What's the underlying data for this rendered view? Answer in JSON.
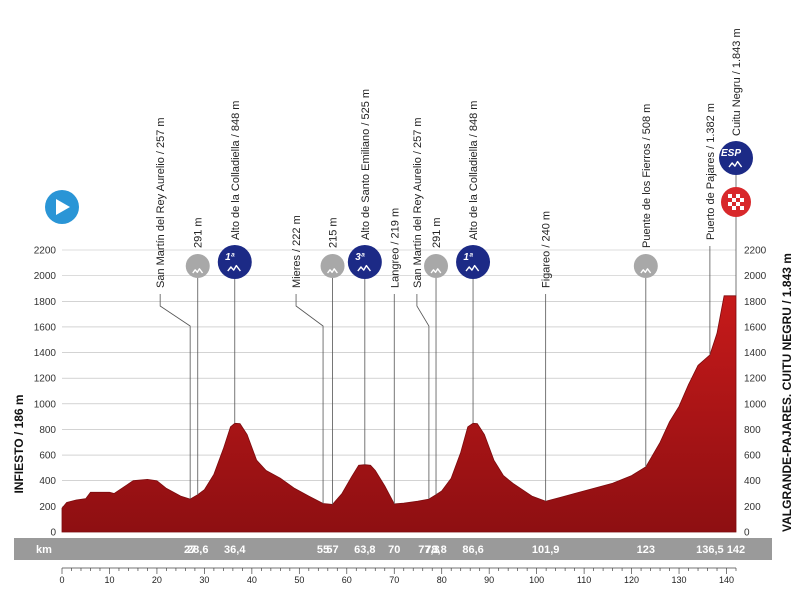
{
  "chart_data": {
    "type": "area",
    "ylim": [
      0,
      2200
    ],
    "yticks": [
      0,
      200,
      400,
      600,
      800,
      1000,
      1200,
      1400,
      1600,
      1800,
      2000,
      2200
    ],
    "xlim": [
      0,
      142
    ],
    "xticks": [
      0,
      10,
      20,
      30,
      40,
      50,
      60,
      70,
      80,
      90,
      100,
      110,
      120,
      130,
      140
    ],
    "km_label": "km",
    "start_label": "INFIESTO / 186 m",
    "finish_label": "VALGRANDE-PAJARES. CUITU NEGRU / 1.843 m",
    "profile": [
      [
        0,
        186
      ],
      [
        1,
        230
      ],
      [
        3,
        250
      ],
      [
        5,
        260
      ],
      [
        6,
        310
      ],
      [
        10,
        310
      ],
      [
        11,
        300
      ],
      [
        13,
        350
      ],
      [
        15,
        400
      ],
      [
        18,
        410
      ],
      [
        20,
        400
      ],
      [
        22,
        340
      ],
      [
        25,
        280
      ],
      [
        27,
        257
      ],
      [
        28.6,
        291
      ],
      [
        30,
        330
      ],
      [
        32,
        450
      ],
      [
        34,
        650
      ],
      [
        35.5,
        820
      ],
      [
        36.4,
        848
      ],
      [
        37.5,
        846
      ],
      [
        39,
        760
      ],
      [
        41,
        560
      ],
      [
        43,
        480
      ],
      [
        46,
        420
      ],
      [
        49,
        340
      ],
      [
        52,
        280
      ],
      [
        55,
        222
      ],
      [
        57,
        215
      ],
      [
        59,
        300
      ],
      [
        61,
        430
      ],
      [
        62.5,
        520
      ],
      [
        63.8,
        525
      ],
      [
        65,
        520
      ],
      [
        66,
        480
      ],
      [
        68,
        360
      ],
      [
        70,
        219
      ],
      [
        72,
        225
      ],
      [
        75,
        240
      ],
      [
        77.3,
        257
      ],
      [
        78.8,
        291
      ],
      [
        80,
        320
      ],
      [
        82,
        420
      ],
      [
        84,
        620
      ],
      [
        85.5,
        820
      ],
      [
        86.6,
        848
      ],
      [
        87.5,
        846
      ],
      [
        89,
        760
      ],
      [
        91,
        560
      ],
      [
        93,
        440
      ],
      [
        95,
        380
      ],
      [
        97,
        330
      ],
      [
        99,
        280
      ],
      [
        101.9,
        240
      ],
      [
        105,
        270
      ],
      [
        108,
        300
      ],
      [
        112,
        340
      ],
      [
        116,
        380
      ],
      [
        120,
        440
      ],
      [
        123,
        508
      ],
      [
        126,
        700
      ],
      [
        128,
        860
      ],
      [
        130,
        980
      ],
      [
        132,
        1150
      ],
      [
        134,
        1300
      ],
      [
        136.5,
        1382
      ],
      [
        138,
        1550
      ],
      [
        139.5,
        1843
      ],
      [
        142,
        1843
      ]
    ],
    "km_markers": [
      {
        "km": 27,
        "label": "27"
      },
      {
        "km": 28.6,
        "label": "28,6"
      },
      {
        "km": 36.4,
        "label": "36,4"
      },
      {
        "km": 55,
        "label": "55"
      },
      {
        "km": 57,
        "label": "57"
      },
      {
        "km": 63.8,
        "label": "63,8"
      },
      {
        "km": 70,
        "label": "70"
      },
      {
        "km": 77.3,
        "label": "77,3"
      },
      {
        "km": 78.8,
        "label": "78,8"
      },
      {
        "km": 86.6,
        "label": "86,6"
      },
      {
        "km": 101.9,
        "label": "101,9"
      },
      {
        "km": 123,
        "label": "123"
      },
      {
        "km": 136.5,
        "label": "136,5"
      },
      {
        "km": 142,
        "label": "142"
      }
    ],
    "points": [
      {
        "km": 27,
        "alt": 257,
        "label": "San Martín del Rey Aurelio / 257 m",
        "kind": "town"
      },
      {
        "km": 28.6,
        "alt": 291,
        "label": "291 m",
        "kind": "sprint"
      },
      {
        "km": 36.4,
        "alt": 848,
        "label": "Alto de la Colladiella / 848 m",
        "kind": "cat",
        "cat": "1ª"
      },
      {
        "km": 55,
        "alt": 222,
        "label": "Mieres / 222 m",
        "kind": "town"
      },
      {
        "km": 57,
        "alt": 215,
        "label": "215 m",
        "kind": "sprint"
      },
      {
        "km": 63.8,
        "alt": 525,
        "label": "Alto de Santo Emiliano / 525 m",
        "kind": "cat",
        "cat": "3ª"
      },
      {
        "km": 70,
        "alt": 219,
        "label": "Langreo / 219 m",
        "kind": "town"
      },
      {
        "km": 77.3,
        "alt": 257,
        "label": "San Martín del Rey Aurelio / 257 m",
        "kind": "town"
      },
      {
        "km": 78.8,
        "alt": 291,
        "label": "291 m",
        "kind": "sprint"
      },
      {
        "km": 86.6,
        "alt": 848,
        "label": "Alto de la Colladiella / 848 m",
        "kind": "cat",
        "cat": "1ª"
      },
      {
        "km": 101.9,
        "alt": 240,
        "label": "Figareo / 240 m",
        "kind": "town"
      },
      {
        "km": 123,
        "alt": 508,
        "label": "Puente de los Fierros / 508 m",
        "kind": "sprint_labeled"
      },
      {
        "km": 136.5,
        "alt": 1382,
        "label": "Puerto de Pajares / 1.382 m",
        "kind": "town"
      },
      {
        "km": 142,
        "alt": 1843,
        "label": "Cuitu Negru / 1.843 m",
        "kind": "esp",
        "cat": "ESP"
      }
    ]
  },
  "colors": {
    "profile_top": "#c61a1a",
    "profile_bottom": "#8e0f12",
    "navy": "#1c2a86",
    "start_blue": "#2a95d6",
    "sprint_grey": "#a8a8a8",
    "km_band": "#9a9a9a",
    "grid": "#b9b9b9"
  }
}
